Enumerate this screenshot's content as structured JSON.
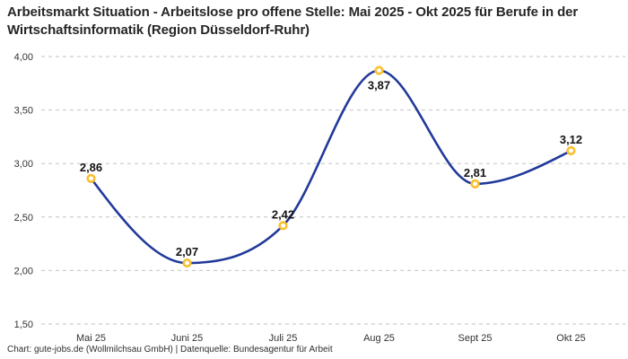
{
  "title": "Arbeitsmarkt Situation - Arbeitslose pro offene Stelle: Mai 2025 - Okt 2025 für Berufe in der Wirtschaftsinformatik (Region Düsseldorf-Ruhr)",
  "footer": "Chart: gute-jobs.de (Wollmilchsau GmbH) | Datenquelle: Bundesagentur für Arbeit",
  "chart_data": {
    "type": "line",
    "title": "Arbeitsmarkt Situation - Arbeitslose pro offene Stelle: Mai 2025 - Okt 2025 für Berufe in der Wirtschaftsinformatik (Region Düsseldorf-Ruhr)",
    "categories": [
      "Mai 25",
      "Juni 25",
      "Juli 25",
      "Aug 25",
      "Sept 25",
      "Okt 25"
    ],
    "values": [
      2.86,
      2.07,
      2.42,
      3.87,
      2.81,
      3.12
    ],
    "value_labels": [
      "2,86",
      "2,07",
      "2,42",
      "3,87",
      "2,81",
      "3,12"
    ],
    "value_label_positions": [
      "above",
      "above",
      "above",
      "below",
      "above",
      "above"
    ],
    "y_ticks": [
      {
        "value": 4.0,
        "label": "4,00"
      },
      {
        "value": 3.5,
        "label": "3,50"
      },
      {
        "value": 3.0,
        "label": "3,00"
      },
      {
        "value": 2.5,
        "label": "2,50"
      },
      {
        "value": 2.0,
        "label": "2,00"
      },
      {
        "value": 1.5,
        "label": "1,50"
      }
    ],
    "ylim": [
      1.5,
      4.0
    ],
    "xlabel": "",
    "ylabel": "",
    "grid": "horizontal-dashed",
    "legend": "none",
    "curve": "monotone",
    "colors": {
      "line": "#21399a",
      "marker_ring": "#f9bf2c",
      "marker_fill": "#ffffff",
      "gridline": "#c2c2c2",
      "data_label": "#141414",
      "axis_label": "#333333"
    }
  }
}
